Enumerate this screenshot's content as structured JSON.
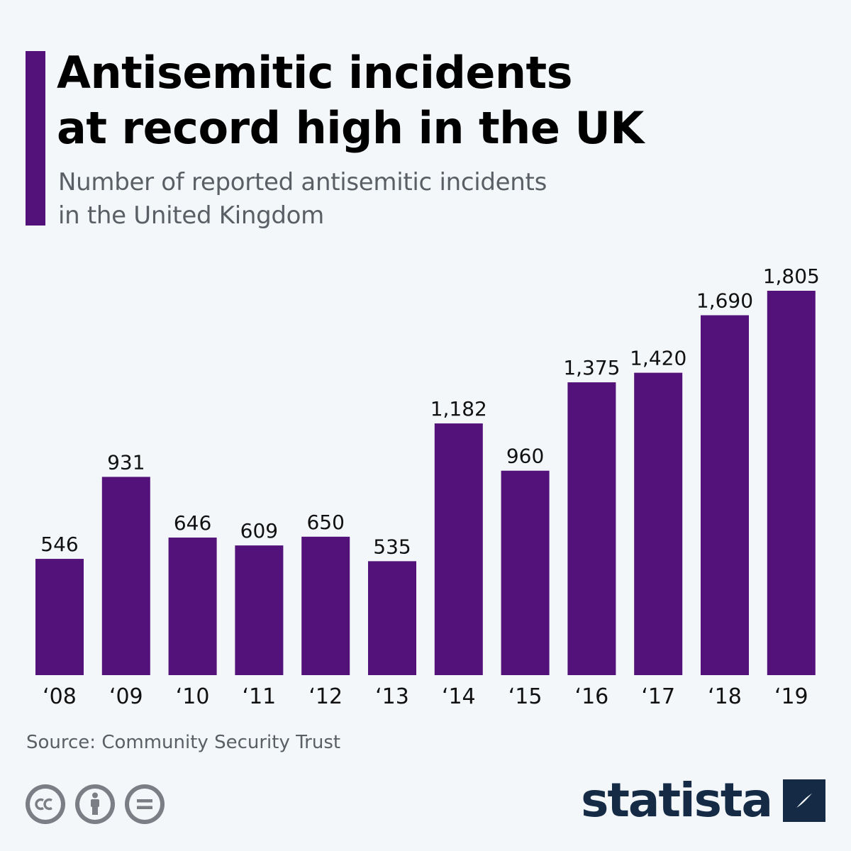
{
  "header": {
    "title_lines": [
      "Antisemitic incidents",
      "at record high in the UK"
    ],
    "subtitle_lines": [
      "Number of reported antisemitic incidents",
      "in the United Kingdom"
    ]
  },
  "colors": {
    "accent": "#52127a",
    "bar": "#52127a",
    "background": "#f3f7fa",
    "brand": "#142a45"
  },
  "chart_data": {
    "type": "bar",
    "categories": [
      "‘08",
      "‘09",
      "‘10",
      "‘11",
      "‘12",
      "‘13",
      "‘14",
      "‘15",
      "‘16",
      "‘17",
      "‘18",
      "‘19"
    ],
    "values": [
      546,
      931,
      646,
      609,
      650,
      535,
      1182,
      960,
      1375,
      1420,
      1690,
      1805
    ],
    "value_labels": [
      "546",
      "931",
      "646",
      "609",
      "650",
      "535",
      "1,182",
      "960",
      "1,375",
      "1,420",
      "1,690",
      "1,805"
    ],
    "title": "Antisemitic incidents at record high in the UK",
    "subtitle": "Number of reported antisemitic incidents in the United Kingdom",
    "xlabel": "",
    "ylabel": "",
    "ylim": [
      0,
      1805
    ],
    "grid": false,
    "legend": "none"
  },
  "footer": {
    "source": "Source: Community Security Trust",
    "brand": "statista",
    "license_icons": [
      "cc-icon",
      "attribution-icon",
      "no-derivatives-icon"
    ]
  }
}
